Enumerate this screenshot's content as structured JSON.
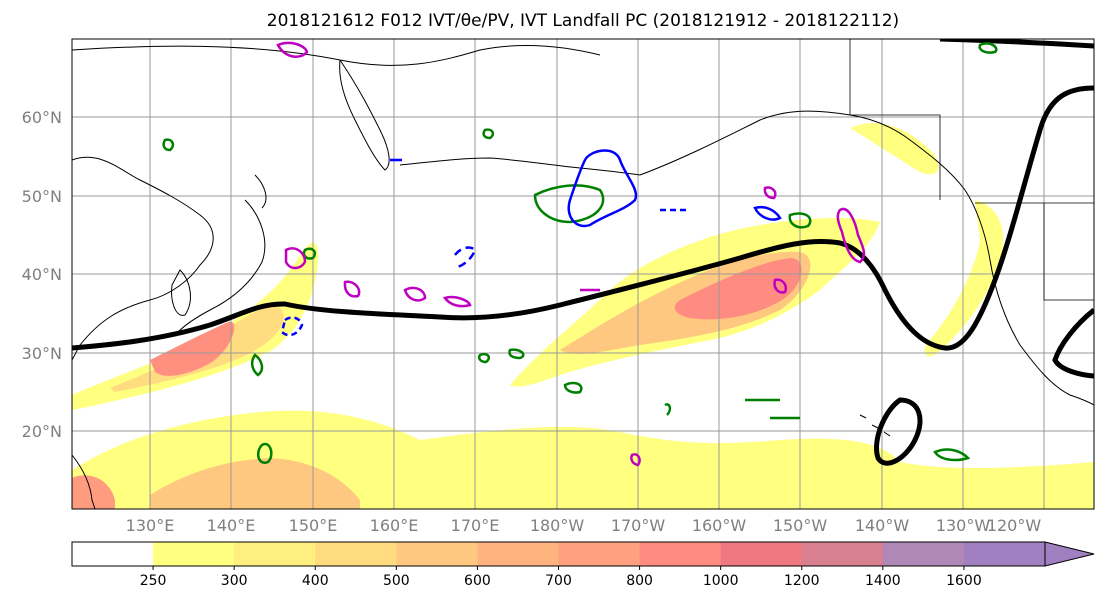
{
  "title": "2018121612 F012 IVT/θe/PV, IVT Landfall PC (2018121912 - 2018122112)",
  "map": {
    "lat_labels": [
      "20°N",
      "30°N",
      "40°N",
      "50°N",
      "60°N"
    ],
    "lon_labels": [
      "130°E",
      "140°E",
      "150°E",
      "160°E",
      "170°E",
      "180°W",
      "170°W",
      "160°W",
      "150°W",
      "140°W",
      "130°W",
      "120°W"
    ],
    "grid": true,
    "contour_colors": {
      "landfall": "#000000",
      "theta_e": "#008000",
      "pv_positive": "#0000ff",
      "pv_negative": "#c000c0",
      "coast": "#000000"
    }
  },
  "colorbar": {
    "ticks": [
      "250",
      "300",
      "400",
      "500",
      "600",
      "700",
      "800",
      "1000",
      "1200",
      "1400",
      "1600"
    ],
    "colors": [
      "#ffffff",
      "#ffff80",
      "#ffee80",
      "#ffdc80",
      "#ffc880",
      "#ffb480",
      "#ffa080",
      "#ff8c80",
      "#f07880",
      "#d88090",
      "#b088b8",
      "#a080c0"
    ],
    "extend": "max"
  }
}
